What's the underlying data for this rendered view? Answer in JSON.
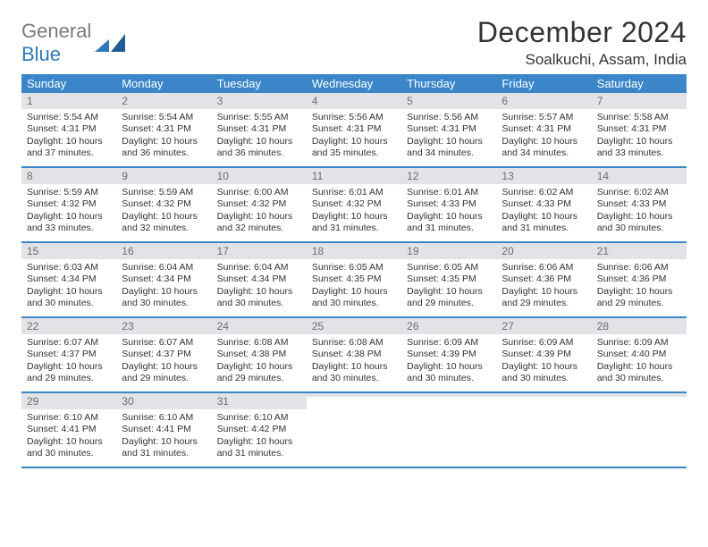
{
  "logo": {
    "text1": "General",
    "text2": "Blue"
  },
  "title": "December 2024",
  "location": "Soalkuchi, Assam, India",
  "colors": {
    "header_bar": "#3a86c8",
    "daynum_bg": "#e1e3e6",
    "daynum_fg": "#6d6d6d",
    "rule": "#3a86c8",
    "logo_gray": "#7a7a7a",
    "logo_blue": "#2f79b9"
  },
  "weekdays": [
    "Sunday",
    "Monday",
    "Tuesday",
    "Wednesday",
    "Thursday",
    "Friday",
    "Saturday"
  ],
  "weeks": [
    [
      {
        "n": "1",
        "sr": "Sunrise: 5:54 AM",
        "ss": "Sunset: 4:31 PM",
        "dl": "Daylight: 10 hours and 37 minutes."
      },
      {
        "n": "2",
        "sr": "Sunrise: 5:54 AM",
        "ss": "Sunset: 4:31 PM",
        "dl": "Daylight: 10 hours and 36 minutes."
      },
      {
        "n": "3",
        "sr": "Sunrise: 5:55 AM",
        "ss": "Sunset: 4:31 PM",
        "dl": "Daylight: 10 hours and 36 minutes."
      },
      {
        "n": "4",
        "sr": "Sunrise: 5:56 AM",
        "ss": "Sunset: 4:31 PM",
        "dl": "Daylight: 10 hours and 35 minutes."
      },
      {
        "n": "5",
        "sr": "Sunrise: 5:56 AM",
        "ss": "Sunset: 4:31 PM",
        "dl": "Daylight: 10 hours and 34 minutes."
      },
      {
        "n": "6",
        "sr": "Sunrise: 5:57 AM",
        "ss": "Sunset: 4:31 PM",
        "dl": "Daylight: 10 hours and 34 minutes."
      },
      {
        "n": "7",
        "sr": "Sunrise: 5:58 AM",
        "ss": "Sunset: 4:31 PM",
        "dl": "Daylight: 10 hours and 33 minutes."
      }
    ],
    [
      {
        "n": "8",
        "sr": "Sunrise: 5:59 AM",
        "ss": "Sunset: 4:32 PM",
        "dl": "Daylight: 10 hours and 33 minutes."
      },
      {
        "n": "9",
        "sr": "Sunrise: 5:59 AM",
        "ss": "Sunset: 4:32 PM",
        "dl": "Daylight: 10 hours and 32 minutes."
      },
      {
        "n": "10",
        "sr": "Sunrise: 6:00 AM",
        "ss": "Sunset: 4:32 PM",
        "dl": "Daylight: 10 hours and 32 minutes."
      },
      {
        "n": "11",
        "sr": "Sunrise: 6:01 AM",
        "ss": "Sunset: 4:32 PM",
        "dl": "Daylight: 10 hours and 31 minutes."
      },
      {
        "n": "12",
        "sr": "Sunrise: 6:01 AM",
        "ss": "Sunset: 4:33 PM",
        "dl": "Daylight: 10 hours and 31 minutes."
      },
      {
        "n": "13",
        "sr": "Sunrise: 6:02 AM",
        "ss": "Sunset: 4:33 PM",
        "dl": "Daylight: 10 hours and 31 minutes."
      },
      {
        "n": "14",
        "sr": "Sunrise: 6:02 AM",
        "ss": "Sunset: 4:33 PM",
        "dl": "Daylight: 10 hours and 30 minutes."
      }
    ],
    [
      {
        "n": "15",
        "sr": "Sunrise: 6:03 AM",
        "ss": "Sunset: 4:34 PM",
        "dl": "Daylight: 10 hours and 30 minutes."
      },
      {
        "n": "16",
        "sr": "Sunrise: 6:04 AM",
        "ss": "Sunset: 4:34 PM",
        "dl": "Daylight: 10 hours and 30 minutes."
      },
      {
        "n": "17",
        "sr": "Sunrise: 6:04 AM",
        "ss": "Sunset: 4:34 PM",
        "dl": "Daylight: 10 hours and 30 minutes."
      },
      {
        "n": "18",
        "sr": "Sunrise: 6:05 AM",
        "ss": "Sunset: 4:35 PM",
        "dl": "Daylight: 10 hours and 30 minutes."
      },
      {
        "n": "19",
        "sr": "Sunrise: 6:05 AM",
        "ss": "Sunset: 4:35 PM",
        "dl": "Daylight: 10 hours and 29 minutes."
      },
      {
        "n": "20",
        "sr": "Sunrise: 6:06 AM",
        "ss": "Sunset: 4:36 PM",
        "dl": "Daylight: 10 hours and 29 minutes."
      },
      {
        "n": "21",
        "sr": "Sunrise: 6:06 AM",
        "ss": "Sunset: 4:36 PM",
        "dl": "Daylight: 10 hours and 29 minutes."
      }
    ],
    [
      {
        "n": "22",
        "sr": "Sunrise: 6:07 AM",
        "ss": "Sunset: 4:37 PM",
        "dl": "Daylight: 10 hours and 29 minutes."
      },
      {
        "n": "23",
        "sr": "Sunrise: 6:07 AM",
        "ss": "Sunset: 4:37 PM",
        "dl": "Daylight: 10 hours and 29 minutes."
      },
      {
        "n": "24",
        "sr": "Sunrise: 6:08 AM",
        "ss": "Sunset: 4:38 PM",
        "dl": "Daylight: 10 hours and 29 minutes."
      },
      {
        "n": "25",
        "sr": "Sunrise: 6:08 AM",
        "ss": "Sunset: 4:38 PM",
        "dl": "Daylight: 10 hours and 30 minutes."
      },
      {
        "n": "26",
        "sr": "Sunrise: 6:09 AM",
        "ss": "Sunset: 4:39 PM",
        "dl": "Daylight: 10 hours and 30 minutes."
      },
      {
        "n": "27",
        "sr": "Sunrise: 6:09 AM",
        "ss": "Sunset: 4:39 PM",
        "dl": "Daylight: 10 hours and 30 minutes."
      },
      {
        "n": "28",
        "sr": "Sunrise: 6:09 AM",
        "ss": "Sunset: 4:40 PM",
        "dl": "Daylight: 10 hours and 30 minutes."
      }
    ],
    [
      {
        "n": "29",
        "sr": "Sunrise: 6:10 AM",
        "ss": "Sunset: 4:41 PM",
        "dl": "Daylight: 10 hours and 30 minutes."
      },
      {
        "n": "30",
        "sr": "Sunrise: 6:10 AM",
        "ss": "Sunset: 4:41 PM",
        "dl": "Daylight: 10 hours and 31 minutes."
      },
      {
        "n": "31",
        "sr": "Sunrise: 6:10 AM",
        "ss": "Sunset: 4:42 PM",
        "dl": "Daylight: 10 hours and 31 minutes."
      },
      {
        "empty": true
      },
      {
        "empty": true
      },
      {
        "empty": true
      },
      {
        "empty": true
      }
    ]
  ]
}
